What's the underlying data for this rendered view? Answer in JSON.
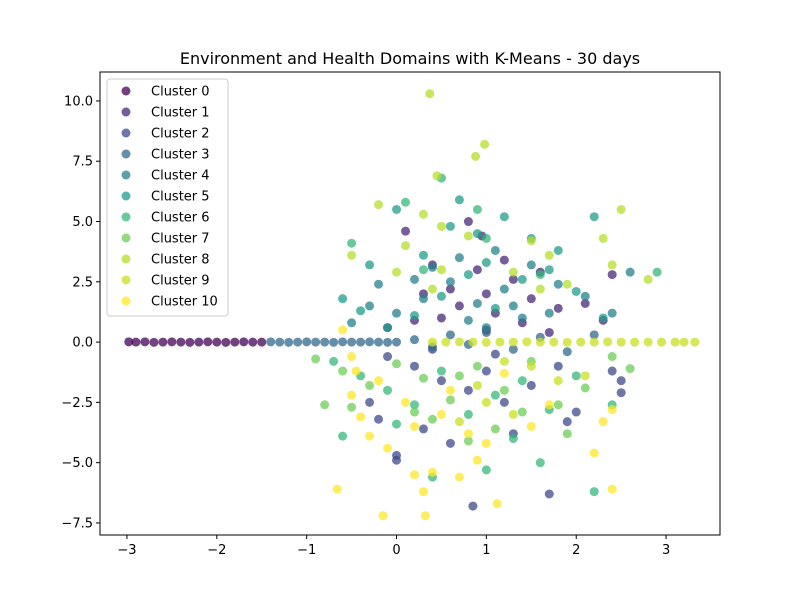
{
  "chart_data": {
    "type": "scatter",
    "title": "Environment and Health Domains with K-Means - 30 days",
    "xlabel": "",
    "ylabel": "",
    "xlim": [
      -3.3,
      3.6
    ],
    "ylim": [
      -8.0,
      11.2
    ],
    "xticks": [
      -3,
      -2,
      -1,
      0,
      1,
      2,
      3
    ],
    "xtick_labels": [
      "−3",
      "−2",
      "−1",
      "0",
      "1",
      "2",
      "3"
    ],
    "yticks": [
      -7.5,
      -5.0,
      -2.5,
      0.0,
      2.5,
      5.0,
      7.5,
      10.0
    ],
    "ytick_labels": [
      "−7.5",
      "−5.0",
      "−2.5",
      "0.0",
      "2.5",
      "5.0",
      "7.5",
      "10.0"
    ],
    "grid": false,
    "legend_position": "top-left",
    "series": [
      {
        "name": "Cluster 0",
        "color": "#440154",
        "points": [
          [
            -2.98,
            0.01
          ],
          [
            -2.9,
            0.0
          ],
          [
            -2.8,
            0.01
          ],
          [
            -2.7,
            -0.01
          ],
          [
            -2.6,
            0.0
          ],
          [
            -2.5,
            0.01
          ],
          [
            -2.4,
            0.0
          ],
          [
            -2.3,
            -0.01
          ],
          [
            -2.2,
            0.0
          ],
          [
            -2.1,
            0.01
          ],
          [
            -2.0,
            0.0
          ],
          [
            -1.9,
            -0.01
          ],
          [
            -1.8,
            0.0
          ],
          [
            -1.7,
            0.01
          ],
          [
            -1.6,
            0.0
          ],
          [
            -1.5,
            0.0
          ]
        ]
      },
      {
        "name": "Cluster 1",
        "color": "#482878",
        "points": [
          [
            0.9,
            3.0
          ],
          [
            1.0,
            2.0
          ],
          [
            1.3,
            2.6
          ],
          [
            1.5,
            1.8
          ],
          [
            0.7,
            1.5
          ],
          [
            1.1,
            1.2
          ],
          [
            1.4,
            0.8
          ],
          [
            1.8,
            1.4
          ],
          [
            0.6,
            2.2
          ],
          [
            1.2,
            3.4
          ],
          [
            0.95,
            4.4
          ],
          [
            0.8,
            5.0
          ],
          [
            1.6,
            2.9
          ],
          [
            2.1,
            1.6
          ],
          [
            2.3,
            0.9
          ],
          [
            0.5,
            1.0
          ],
          [
            1.0,
            0.5
          ],
          [
            1.7,
            0.4
          ],
          [
            0.2,
            0.9
          ],
          [
            -0.1,
            0.6
          ],
          [
            0.3,
            2.0
          ],
          [
            0.1,
            4.6
          ],
          [
            2.4,
            2.8
          ],
          [
            0.4,
            3.2
          ]
        ]
      },
      {
        "name": "Cluster 2",
        "color": "#3e4989",
        "points": [
          [
            -0.1,
            -0.6
          ],
          [
            0.2,
            -1.0
          ],
          [
            0.5,
            -1.6
          ],
          [
            0.8,
            -2.0
          ],
          [
            1.0,
            -1.2
          ],
          [
            1.2,
            -2.5
          ],
          [
            1.5,
            -1.8
          ],
          [
            1.8,
            -1.0
          ],
          [
            2.0,
            -2.9
          ],
          [
            0.3,
            -3.6
          ],
          [
            -0.2,
            -3.2
          ],
          [
            0.0,
            -4.9
          ],
          [
            0.85,
            -6.8
          ],
          [
            1.7,
            -6.3
          ],
          [
            2.5,
            -1.6
          ],
          [
            2.5,
            -2.1
          ],
          [
            0.6,
            -4.2
          ],
          [
            1.3,
            -3.8
          ],
          [
            -0.3,
            -2.5
          ],
          [
            2.4,
            -1.2
          ],
          [
            1.1,
            -0.5
          ],
          [
            0.4,
            -0.3
          ],
          [
            0.0,
            -4.7
          ],
          [
            1.9,
            -3.3
          ]
        ]
      },
      {
        "name": "Cluster 3",
        "color": "#31688e",
        "points": [
          [
            -1.4,
            0.01
          ],
          [
            -1.3,
            0.0
          ],
          [
            -1.2,
            -0.01
          ],
          [
            -1.1,
            0.0
          ],
          [
            -1.0,
            0.01
          ],
          [
            -0.9,
            0.0
          ],
          [
            -0.8,
            0.0
          ],
          [
            -0.7,
            -0.01
          ],
          [
            -0.6,
            0.01
          ],
          [
            -0.5,
            0.0
          ],
          [
            -0.4,
            0.0
          ],
          [
            -0.3,
            0.01
          ],
          [
            -0.2,
            0.0
          ],
          [
            -0.1,
            -0.01
          ],
          [
            0.0,
            0.0
          ],
          [
            0.2,
            0.1
          ],
          [
            0.4,
            -0.2
          ],
          [
            0.6,
            0.3
          ],
          [
            0.8,
            -0.1
          ],
          [
            1.0,
            0.4
          ],
          [
            1.3,
            -0.3
          ],
          [
            1.6,
            0.2
          ],
          [
            1.9,
            -0.4
          ],
          [
            2.2,
            0.3
          ]
        ]
      },
      {
        "name": "Cluster 4",
        "color": "#26828e",
        "points": [
          [
            0.0,
            1.2
          ],
          [
            0.3,
            1.8
          ],
          [
            0.6,
            2.5
          ],
          [
            0.9,
            1.6
          ],
          [
            1.2,
            2.2
          ],
          [
            1.5,
            3.2
          ],
          [
            1.8,
            2.4
          ],
          [
            2.1,
            1.9
          ],
          [
            0.4,
            3.1
          ],
          [
            -0.3,
            1.5
          ],
          [
            -0.5,
            0.8
          ],
          [
            0.8,
            0.9
          ],
          [
            1.1,
            3.8
          ],
          [
            1.7,
            1.2
          ],
          [
            2.4,
            1.2
          ],
          [
            0.2,
            2.6
          ],
          [
            1.4,
            1.0
          ],
          [
            -0.2,
            2.4
          ],
          [
            2.6,
            2.9
          ],
          [
            1.0,
            0.6
          ],
          [
            0.7,
            3.5
          ],
          [
            1.3,
            1.5
          ]
        ]
      },
      {
        "name": "Cluster 5",
        "color": "#1f9e89",
        "points": [
          [
            -0.1,
            0.6
          ],
          [
            0.2,
            1.1
          ],
          [
            0.5,
            1.9
          ],
          [
            0.8,
            2.8
          ],
          [
            1.1,
            1.4
          ],
          [
            1.4,
            2.6
          ],
          [
            1.7,
            3.0
          ],
          [
            2.0,
            2.1
          ],
          [
            -0.4,
            1.3
          ],
          [
            0.0,
            5.5
          ],
          [
            0.6,
            4.8
          ],
          [
            1.2,
            5.2
          ],
          [
            1.5,
            4.3
          ],
          [
            2.2,
            5.2
          ],
          [
            -0.6,
            1.8
          ],
          [
            0.3,
            3.6
          ],
          [
            0.9,
            4.5
          ],
          [
            1.8,
            3.8
          ],
          [
            2.3,
            1.0
          ],
          [
            1.0,
            3.3
          ],
          [
            -0.3,
            3.2
          ],
          [
            0.7,
            5.9
          ]
        ]
      },
      {
        "name": "Cluster 6",
        "color": "#35b779",
        "points": [
          [
            -0.7,
            -0.8
          ],
          [
            -0.4,
            -1.4
          ],
          [
            -0.1,
            -2.0
          ],
          [
            0.2,
            -2.6
          ],
          [
            0.5,
            -1.2
          ],
          [
            0.8,
            -3.0
          ],
          [
            1.1,
            -2.2
          ],
          [
            1.4,
            -1.6
          ],
          [
            1.7,
            -2.8
          ],
          [
            2.0,
            -1.4
          ],
          [
            -0.6,
            -3.9
          ],
          [
            0.4,
            -5.6
          ],
          [
            1.0,
            -5.3
          ],
          [
            1.6,
            -5.0
          ],
          [
            2.2,
            -6.2
          ],
          [
            0.0,
            -3.4
          ],
          [
            1.3,
            -4.0
          ],
          [
            2.4,
            -2.6
          ],
          [
            0.1,
            5.8
          ],
          [
            0.5,
            6.8
          ],
          [
            1.0,
            4.3
          ],
          [
            0.3,
            3.0
          ],
          [
            1.6,
            2.8
          ],
          [
            2.9,
            2.9
          ],
          [
            -0.5,
            4.1
          ],
          [
            0.9,
            5.5
          ]
        ]
      },
      {
        "name": "Cluster 7",
        "color": "#6ece58",
        "points": [
          [
            -0.9,
            -0.7
          ],
          [
            -0.6,
            -1.2
          ],
          [
            -0.3,
            -1.8
          ],
          [
            0.0,
            -0.9
          ],
          [
            0.3,
            -1.5
          ],
          [
            0.6,
            -2.4
          ],
          [
            0.9,
            -1.0
          ],
          [
            1.2,
            -2.0
          ],
          [
            1.5,
            -0.8
          ],
          [
            1.8,
            -2.6
          ],
          [
            2.1,
            -1.9
          ],
          [
            -0.5,
            -2.7
          ],
          [
            0.4,
            -3.2
          ],
          [
            1.1,
            -3.6
          ],
          [
            1.9,
            -3.8
          ],
          [
            2.6,
            -1.1
          ],
          [
            0.8,
            -4.1
          ],
          [
            -0.8,
            -2.6
          ],
          [
            0.2,
            -2.9
          ],
          [
            1.4,
            -2.9
          ],
          [
            2.4,
            -0.6
          ],
          [
            0.7,
            -1.4
          ]
        ]
      },
      {
        "name": "Cluster 8",
        "color": "#b5de2b",
        "points": [
          [
            0.37,
            10.3
          ],
          [
            0.98,
            8.2
          ],
          [
            0.88,
            7.7
          ],
          [
            0.45,
            6.9
          ],
          [
            2.5,
            5.5
          ],
          [
            0.3,
            5.3
          ],
          [
            -0.2,
            5.7
          ],
          [
            0.5,
            4.8
          ],
          [
            2.3,
            4.3
          ],
          [
            1.5,
            4.2
          ],
          [
            0.1,
            4.0
          ],
          [
            2.4,
            3.2
          ],
          [
            0.5,
            3.0
          ],
          [
            1.9,
            2.4
          ],
          [
            0.0,
            2.9
          ],
          [
            1.6,
            2.2
          ],
          [
            0.8,
            4.4
          ],
          [
            -0.5,
            3.6
          ],
          [
            2.8,
            2.6
          ],
          [
            0.4,
            2.2
          ],
          [
            1.3,
            2.9
          ],
          [
            1.7,
            3.6
          ]
        ]
      },
      {
        "name": "Cluster 9",
        "color": "#c8e020",
        "points": [
          [
            0.4,
            0.0
          ],
          [
            0.55,
            0.0
          ],
          [
            0.7,
            0.01
          ],
          [
            0.85,
            0.0
          ],
          [
            1.0,
            -0.01
          ],
          [
            1.15,
            0.0
          ],
          [
            1.3,
            0.0
          ],
          [
            1.45,
            0.01
          ],
          [
            1.6,
            0.0
          ],
          [
            1.75,
            0.0
          ],
          [
            1.9,
            -0.01
          ],
          [
            2.05,
            0.0
          ],
          [
            2.2,
            0.0
          ],
          [
            2.35,
            0.01
          ],
          [
            2.5,
            0.0
          ],
          [
            2.65,
            0.0
          ],
          [
            2.8,
            0.0
          ],
          [
            2.95,
            0.0
          ],
          [
            3.1,
            0.0
          ],
          [
            3.2,
            0.0
          ],
          [
            3.32,
            0.0
          ],
          [
            1.2,
            -0.8
          ],
          [
            1.5,
            -1.0
          ],
          [
            1.8,
            -1.6
          ],
          [
            0.9,
            -1.8
          ],
          [
            1.0,
            -2.5
          ],
          [
            2.1,
            -1.4
          ],
          [
            0.7,
            -3.3
          ],
          [
            1.3,
            -3.0
          ]
        ]
      },
      {
        "name": "Cluster 10",
        "color": "#fde725",
        "points": [
          [
            -0.66,
            -6.1
          ],
          [
            -0.15,
            -7.2
          ],
          [
            0.32,
            -7.2
          ],
          [
            0.3,
            -6.2
          ],
          [
            1.12,
            -6.7
          ],
          [
            2.4,
            -6.1
          ],
          [
            2.2,
            -4.6
          ],
          [
            0.4,
            -5.4
          ],
          [
            0.7,
            -5.6
          ],
          [
            0.9,
            -4.9
          ],
          [
            0.2,
            -5.5
          ],
          [
            -0.1,
            -4.4
          ],
          [
            -0.4,
            -3.1
          ],
          [
            -0.3,
            -3.9
          ],
          [
            0.5,
            -3.0
          ],
          [
            1.0,
            -4.2
          ],
          [
            1.5,
            -3.5
          ],
          [
            2.4,
            -2.8
          ],
          [
            2.3,
            -3.3
          ],
          [
            -0.5,
            -2.2
          ],
          [
            -0.45,
            -1.2
          ],
          [
            -0.5,
            -0.6
          ],
          [
            -0.6,
            0.5
          ],
          [
            0.1,
            -2.5
          ],
          [
            0.6,
            -2.0
          ],
          [
            1.2,
            -1.3
          ],
          [
            0.2,
            -3.5
          ],
          [
            1.7,
            -2.6
          ],
          [
            0.8,
            -3.8
          ],
          [
            -0.2,
            -1.6
          ]
        ]
      }
    ]
  }
}
